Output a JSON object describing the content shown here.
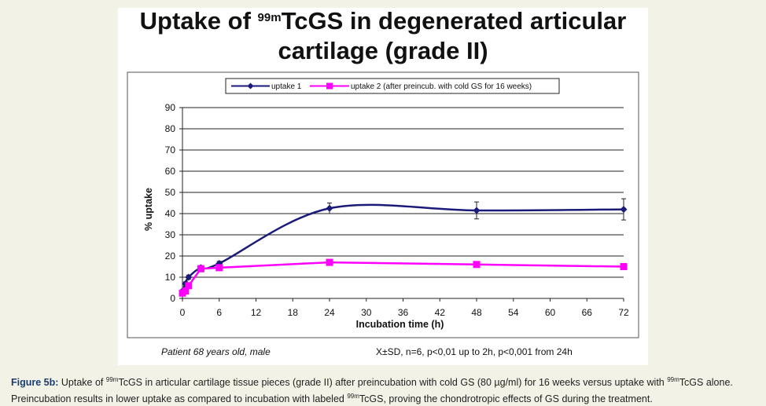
{
  "title": {
    "part1": "Uptake of",
    "sup": "99m",
    "part2": "TcGS in  degenerated articular",
    "line2": "cartilage (grade II)"
  },
  "footer": {
    "left": "Patient 68 years old, male",
    "right": "X±SD, n=6, p<0,01 up to 2h, p<0,001 from 24h"
  },
  "caption": {
    "label": "Figure 5b:",
    "t1": " Uptake of ",
    "sup1": "99m",
    "t2": "TcGS in articular cartilage tissue pieces (grade II) after preincubation with cold GS (80 µg/ml) for 16 weeks versus uptake with ",
    "sup2": "99m",
    "t3": "TcGS alone. Preincubation results in lower uptake as compared to incubation with labeled ",
    "sup3": "99m",
    "t4": "TcGS, proving the chondrotropic effects of GS during the treatment."
  },
  "chart_data": {
    "type": "line",
    "xlabel": "Incubation time (h)",
    "ylabel": "% uptake",
    "xlim": [
      0,
      72
    ],
    "ylim": [
      0,
      90
    ],
    "xticks": [
      0,
      6,
      12,
      18,
      24,
      30,
      36,
      42,
      48,
      54,
      60,
      66,
      72
    ],
    "yticks": [
      0,
      10,
      20,
      30,
      40,
      50,
      60,
      70,
      80,
      90
    ],
    "grid": "horizontal",
    "legend_position": "top",
    "series": [
      {
        "name": "uptake 1",
        "color": "#1a1a7a",
        "marker": "diamond",
        "smooth": true,
        "x": [
          0,
          0.5,
          1,
          3,
          6,
          24,
          48,
          72
        ],
        "y": [
          3.5,
          7,
          10,
          14.5,
          16.5,
          42.5,
          41.5,
          42
        ],
        "err": [
          0.5,
          0.8,
          1,
          1,
          1,
          2.5,
          4,
          5
        ]
      },
      {
        "name": "uptake 2 (after preincub. with cold GS for 16 weeks)",
        "color": "#ff00ff",
        "marker": "square",
        "smooth": false,
        "x": [
          0,
          0.5,
          1,
          3,
          6,
          24,
          48,
          72
        ],
        "y": [
          2.5,
          3.5,
          6,
          14,
          14.5,
          17,
          16,
          15
        ],
        "err": [
          0,
          0,
          0,
          0,
          0,
          0,
          0,
          0
        ]
      }
    ]
  }
}
